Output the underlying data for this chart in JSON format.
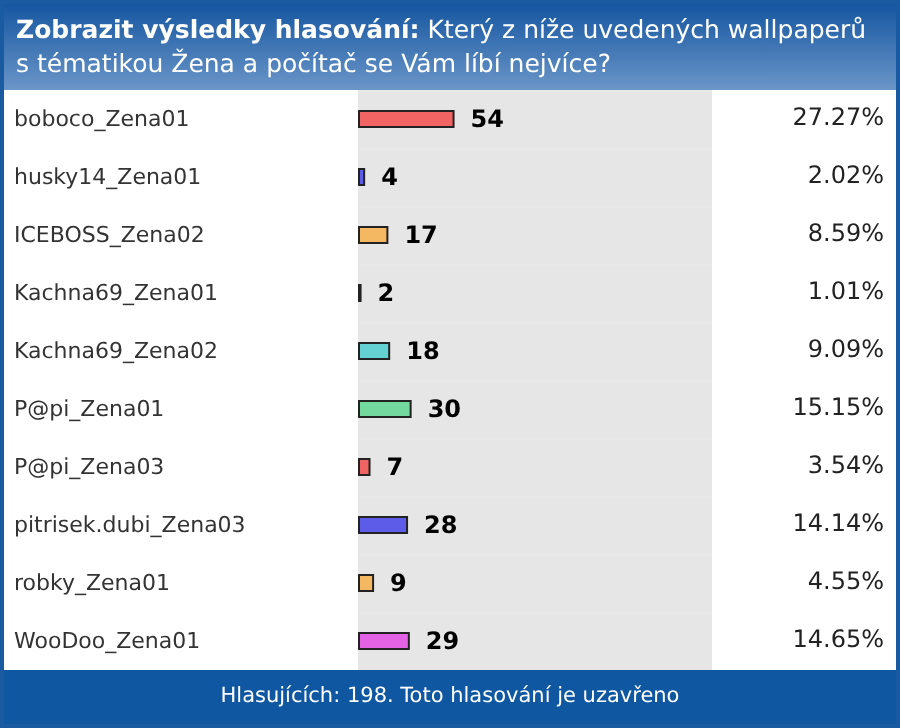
{
  "chart_data": {
    "type": "bar",
    "orientation": "horizontal",
    "title": "Zobrazit výsledky hlasování:",
    "subtitle": "Který z níže uvedených wallpaperů s tématikou Žena a počítač se Vám líbí nejvíce?",
    "categories": [
      "boboco_Zena01",
      "husky14_Zena01",
      "ICEBOSS_Zena02",
      "Kachna69_Zena01",
      "Kachna69_Zena02",
      "P@pi_Zena01",
      "P@pi_Zena03",
      "pitrisek.dubi_Zena03",
      "robky_Zena01",
      "WooDoo_Zena01"
    ],
    "values": [
      54,
      4,
      17,
      2,
      18,
      30,
      7,
      28,
      9,
      29
    ],
    "colors": [
      "#f06464",
      "#5c5ce8",
      "#f5b862",
      "#e462e4",
      "#64d2d2",
      "#72d89e",
      "#f06464",
      "#5c5ce8",
      "#f5b862",
      "#e462e4"
    ],
    "data_labels": true,
    "annotations": [
      "27.27%",
      "2.02%",
      "8.59%",
      "1.01%",
      "9.09%",
      "15.15%",
      "3.54%",
      "14.14%",
      "4.55%",
      "14.65%",
      "Hlasujících: 198. Toto hlasování je uzavřeno"
    ]
  }
}
